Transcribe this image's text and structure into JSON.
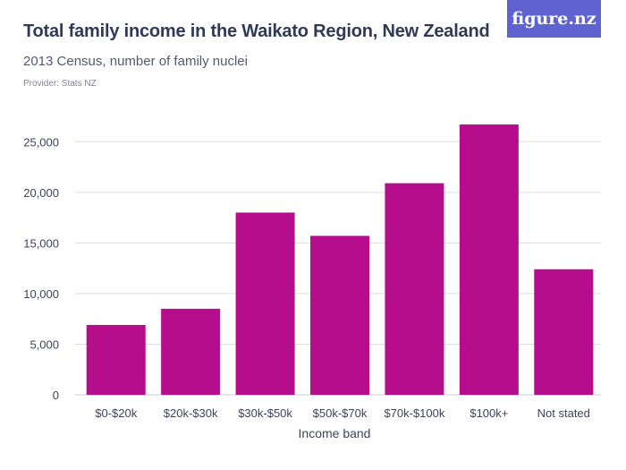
{
  "header": {
    "title": "Total family income in the Waikato Region, New Zealand",
    "subtitle": "2013 Census, number of family nuclei",
    "provider": "Provider: Stats NZ",
    "logo_text": "figure.nz"
  },
  "colors": {
    "bar": "#b50d8c",
    "grid": "#dddddd",
    "logo_bg": "#5f62d1"
  },
  "chart_data": {
    "type": "bar",
    "title": "Total family income in the Waikato Region, New Zealand",
    "subtitle": "2013 Census, number of family nuclei",
    "xlabel": "Income band",
    "ylabel": "",
    "categories": [
      "$0-$20k",
      "$20k-$30k",
      "$30k-$50k",
      "$50k-$70k",
      "$70k-$100k",
      "$100k+",
      "Not stated"
    ],
    "values": [
      6900,
      8500,
      18000,
      15700,
      20900,
      26700,
      12400
    ],
    "ylim": [
      0,
      27500
    ],
    "yticks": [
      0,
      5000,
      10000,
      15000,
      20000,
      25000
    ],
    "ytick_labels": [
      "0",
      "5,000",
      "10,000",
      "15,000",
      "20,000",
      "25,000"
    ],
    "grid": true,
    "legend": "none"
  }
}
